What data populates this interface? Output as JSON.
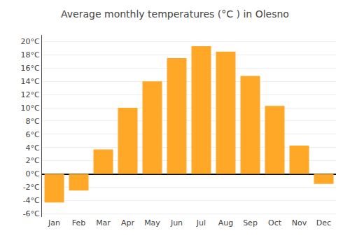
{
  "chart_data": {
    "type": "bar",
    "title": "Average monthly temperatures (°C ) in Olesno",
    "categories": [
      "Jan",
      "Feb",
      "Mar",
      "Apr",
      "May",
      "Jun",
      "Jul",
      "Aug",
      "Sep",
      "Oct",
      "Nov",
      "Dec"
    ],
    "values": [
      -4.3,
      -2.5,
      3.7,
      10.0,
      14.0,
      17.5,
      19.3,
      18.5,
      14.8,
      10.3,
      4.3,
      -1.5
    ],
    "color": "#FFA726",
    "ylim": [
      -6.5,
      21
    ],
    "yticks": [
      {
        "value": -6,
        "label": "-6°C"
      },
      {
        "value": -4,
        "label": "-4°C"
      },
      {
        "value": -2,
        "label": "-2°C"
      },
      {
        "value": 0,
        "label": "0°C"
      },
      {
        "value": 2,
        "label": "2°C"
      },
      {
        "value": 4,
        "label": "4°C"
      },
      {
        "value": 6,
        "label": "6°C"
      },
      {
        "value": 8,
        "label": "8°C"
      },
      {
        "value": 10,
        "label": "10°C"
      },
      {
        "value": 12,
        "label": "12°C"
      },
      {
        "value": 14,
        "label": "14°C"
      },
      {
        "value": 16,
        "label": "16°C"
      },
      {
        "value": 18,
        "label": "18°C"
      },
      {
        "value": 20,
        "label": "20°C"
      }
    ],
    "grid": true
  }
}
